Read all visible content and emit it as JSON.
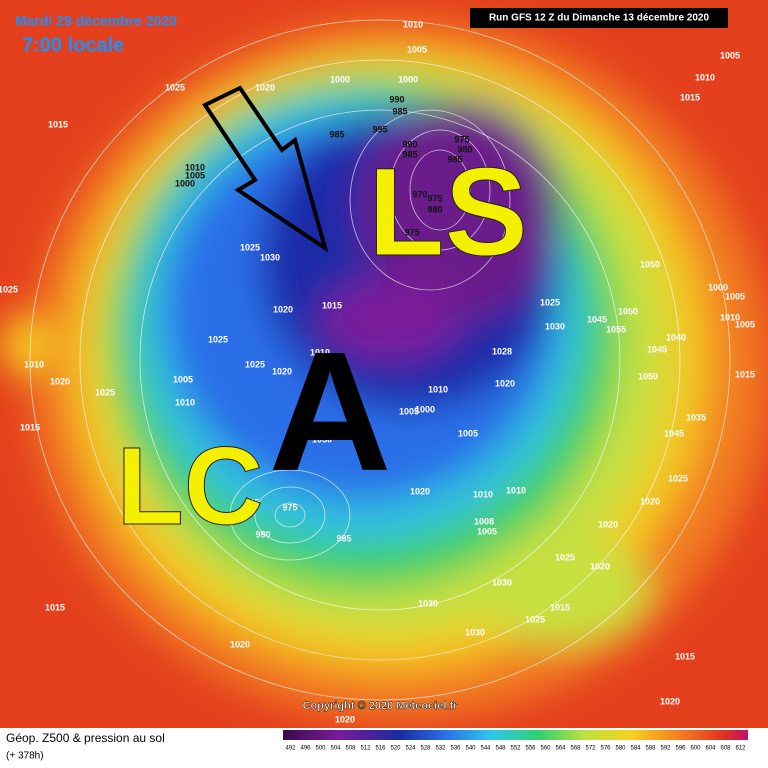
{
  "header": {
    "date": "Mardi 29 décembre 2020",
    "time": "7:00 locale",
    "run": "Run GFS 12 Z du Dimanche 13 décembre 2020"
  },
  "annotations": {
    "ls": "LS",
    "a": "A",
    "lc": "LC"
  },
  "pressure_labels": [
    "1010",
    "1005",
    "1000",
    "1000",
    "1025",
    "1020",
    "1015",
    "990",
    "985",
    "995",
    "985",
    "990",
    "985",
    "975",
    "980",
    "985",
    "1010",
    "1005",
    "1000",
    "970",
    "975",
    "980",
    "975",
    "1025",
    "1030",
    "1050",
    "1025",
    "1020",
    "1015",
    "1025",
    "1030",
    "1045",
    "1055",
    "1050",
    "1045",
    "1040",
    "1010",
    "1025",
    "1025",
    "1020",
    "1028",
    "1010",
    "1020",
    "1025",
    "1005",
    "1010",
    "1010",
    "1020",
    "1050",
    "1005",
    "1000",
    "1035",
    "1015",
    "1005",
    "1045",
    "1030",
    "1020",
    "1010",
    "1010",
    "1025",
    "985",
    "975",
    "980",
    "985",
    "1020",
    "1020",
    "1008",
    "1005",
    "1025",
    "1020",
    "1030",
    "1030",
    "1015",
    "1025",
    "1030",
    "1015",
    "1020",
    "1015",
    "1020",
    "1020",
    "1005",
    "1010",
    "1015",
    "1000",
    "1005",
    "1010",
    "1005",
    "1015"
  ],
  "copyright": "Copyright © 2020 Meteociel.fr",
  "footer": {
    "title": "Géop. Z500 & pression au sol",
    "lead": "(+ 378h)",
    "scale": [
      "492",
      "496",
      "500",
      "504",
      "508",
      "512",
      "516",
      "520",
      "524",
      "528",
      "532",
      "536",
      "540",
      "544",
      "548",
      "552",
      "556",
      "560",
      "564",
      "568",
      "572",
      "576",
      "580",
      "584",
      "588",
      "592",
      "596",
      "600",
      "604",
      "608",
      "612"
    ]
  }
}
